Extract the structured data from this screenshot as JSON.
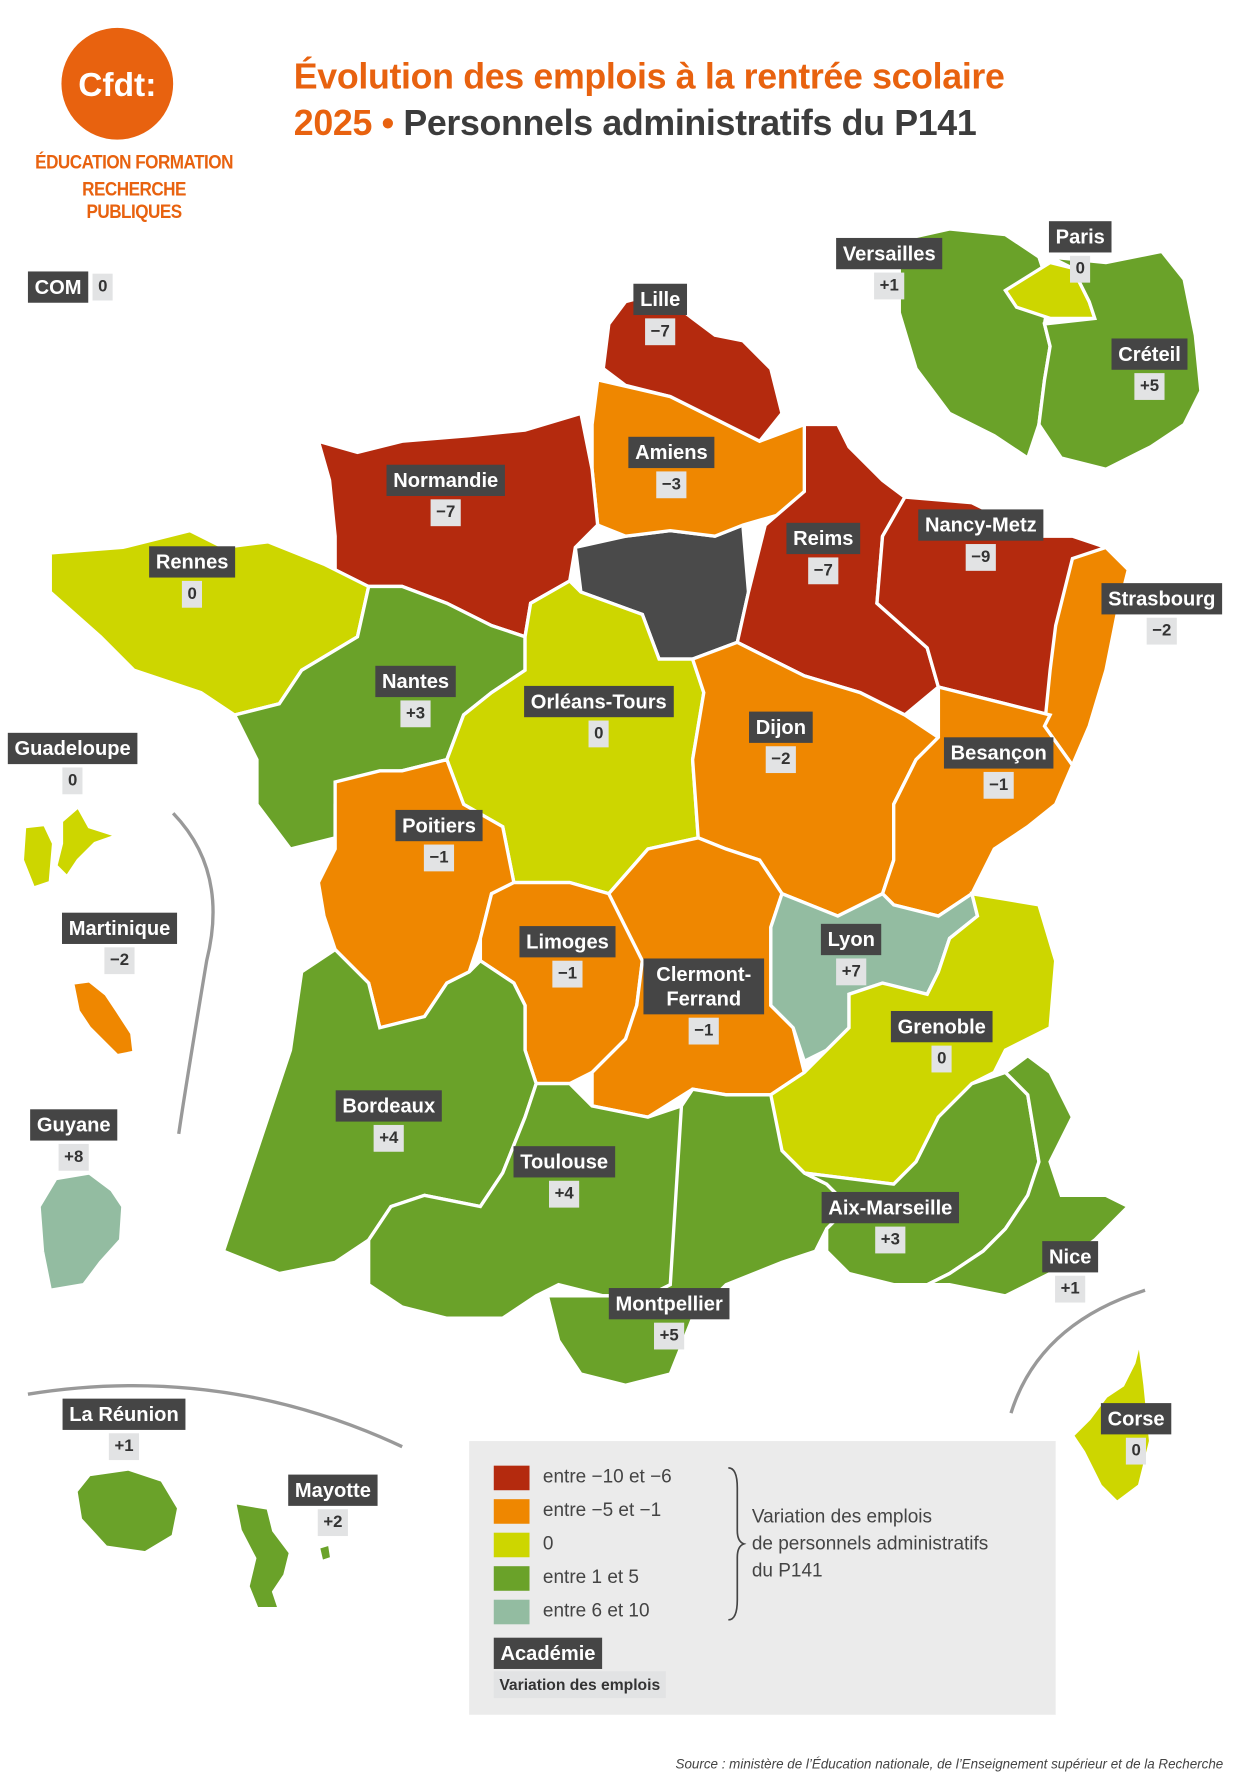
{
  "header": {
    "logo_text": "Cfdt:",
    "logo_subtitle": [
      "ÉDUCATION FORMATION",
      "RECHERCHE PUBLIQUES"
    ],
    "title_line1": "Évolution des emplois à la rentrée scolaire",
    "title_line2_highlight": "2025 •",
    "title_line2_rest": "Personnels administratifs du P141"
  },
  "com": {
    "label": "COM",
    "value": "0"
  },
  "regions": [
    {
      "label": "Lille",
      "value": "−7",
      "color": "#b42a0e"
    },
    {
      "label": "Amiens",
      "value": "−3",
      "color": "#ef8700"
    },
    {
      "label": "Normandie",
      "value": "−7",
      "color": "#b42a0e"
    },
    {
      "label": "Reims",
      "value": "−7",
      "color": "#b42a0e"
    },
    {
      "label": "Nancy-Metz",
      "value": "−9",
      "color": "#b42a0e"
    },
    {
      "label": "Strasbourg",
      "value": "−2",
      "color": "#ef8700"
    },
    {
      "label": "Rennes",
      "value": "0",
      "color": "#cdd600"
    },
    {
      "label": "Nantes",
      "value": "+3",
      "color": "#6aa229"
    },
    {
      "label": "Orléans-Tours",
      "value": "0",
      "color": "#cdd600"
    },
    {
      "label": "Dijon",
      "value": "−2",
      "color": "#ef8700"
    },
    {
      "label": "Besançon",
      "value": "−1",
      "color": "#ef8700"
    },
    {
      "label": "Poitiers",
      "value": "−1",
      "color": "#ef8700"
    },
    {
      "label": "Limoges",
      "value": "−1",
      "color": "#ef8700"
    },
    {
      "label": "Clermont-Ferrand",
      "value": "−1",
      "color": "#ef8700"
    },
    {
      "label": "Lyon",
      "value": "+7",
      "color": "#93bca1"
    },
    {
      "label": "Grenoble",
      "value": "0",
      "color": "#cdd600"
    },
    {
      "label": "Bordeaux",
      "value": "+4",
      "color": "#6aa229"
    },
    {
      "label": "Toulouse",
      "value": "+4",
      "color": "#6aa229"
    },
    {
      "label": "Montpellier",
      "value": "+5",
      "color": "#6aa229"
    },
    {
      "label": "Aix-Marseille",
      "value": "+3",
      "color": "#6aa229"
    },
    {
      "label": "Nice",
      "value": "+1",
      "color": "#6aa229"
    },
    {
      "label": "Versailles",
      "value": "+1",
      "color": "#6aa229"
    },
    {
      "label": "Paris",
      "value": "0",
      "color": "#cdd600"
    },
    {
      "label": "Créteil",
      "value": "+5",
      "color": "#6aa229"
    },
    {
      "label": "Guadeloupe",
      "value": "0",
      "color": "#cdd600"
    },
    {
      "label": "Martinique",
      "value": "−2",
      "color": "#ef8700"
    },
    {
      "label": "Guyane",
      "value": "+8",
      "color": "#93bca1"
    },
    {
      "label": "La Réunion",
      "value": "+1",
      "color": "#6aa229"
    },
    {
      "label": "Mayotte",
      "value": "+2",
      "color": "#6aa229"
    },
    {
      "label": "Corse",
      "value": "0",
      "color": "#cdd600"
    }
  ],
  "legend": {
    "items": [
      {
        "label": "entre −10 et −6",
        "color": "#b42a0e"
      },
      {
        "label": "entre −5 et −1",
        "color": "#ef8700"
      },
      {
        "label": "0",
        "color": "#cdd600"
      },
      {
        "label": "entre 1 et 5",
        "color": "#6aa229"
      },
      {
        "label": "entre 6 et 10",
        "color": "#93bca1"
      }
    ],
    "note": [
      "Variation des emplois",
      "de personnels administratifs",
      "du P141"
    ],
    "key_label": "Académie",
    "key_value": "Variation des emplois"
  },
  "source": "Source : ministère de l’Éducation nationale, de l’Enseignement supérieur et de la Recherche"
}
